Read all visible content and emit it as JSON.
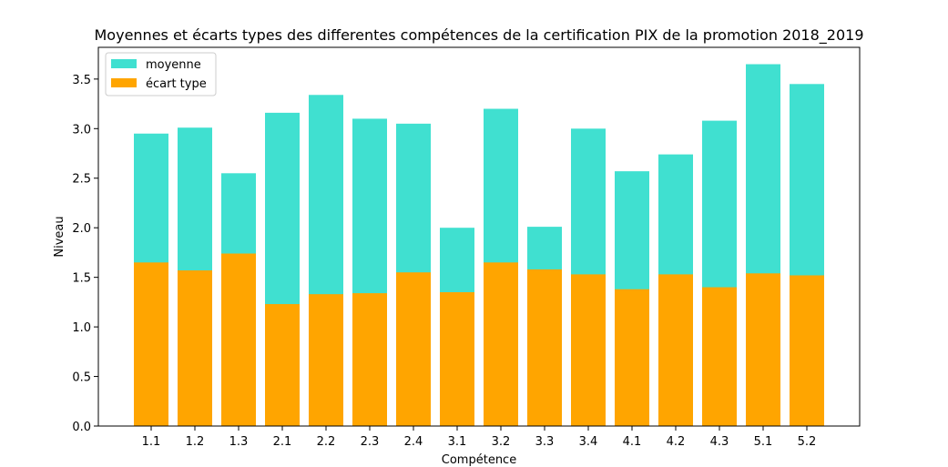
{
  "chart_data": {
    "type": "bar",
    "title": "Moyennes et écarts types des differentes compétences de la certification PIX de la promotion 2018_2019",
    "xlabel": "Compétence",
    "ylabel": "Niveau",
    "categories": [
      "1.1",
      "1.2",
      "1.3",
      "2.1",
      "2.2",
      "2.3",
      "2.4",
      "3.1",
      "3.2",
      "3.3",
      "3.4",
      "4.1",
      "4.2",
      "4.3",
      "5.1",
      "5.2"
    ],
    "series": [
      {
        "name": "moyenne",
        "color": "#40e0d0",
        "values": [
          2.95,
          3.01,
          2.55,
          3.16,
          3.34,
          3.1,
          3.05,
          2.0,
          3.2,
          2.01,
          3.0,
          2.57,
          2.74,
          3.08,
          3.65,
          3.45
        ]
      },
      {
        "name": "écart type",
        "color": "#ffa500",
        "values": [
          1.65,
          1.57,
          1.74,
          1.23,
          1.33,
          1.34,
          1.55,
          1.35,
          1.65,
          1.58,
          1.53,
          1.38,
          1.53,
          1.4,
          1.54,
          1.52
        ]
      }
    ],
    "ylim": [
      0,
      3.82
    ],
    "yticks": [
      "0.0",
      "0.5",
      "1.0",
      "1.5",
      "2.0",
      "2.5",
      "3.0",
      "3.5"
    ],
    "grid": false,
    "legend_position": "top-left"
  }
}
